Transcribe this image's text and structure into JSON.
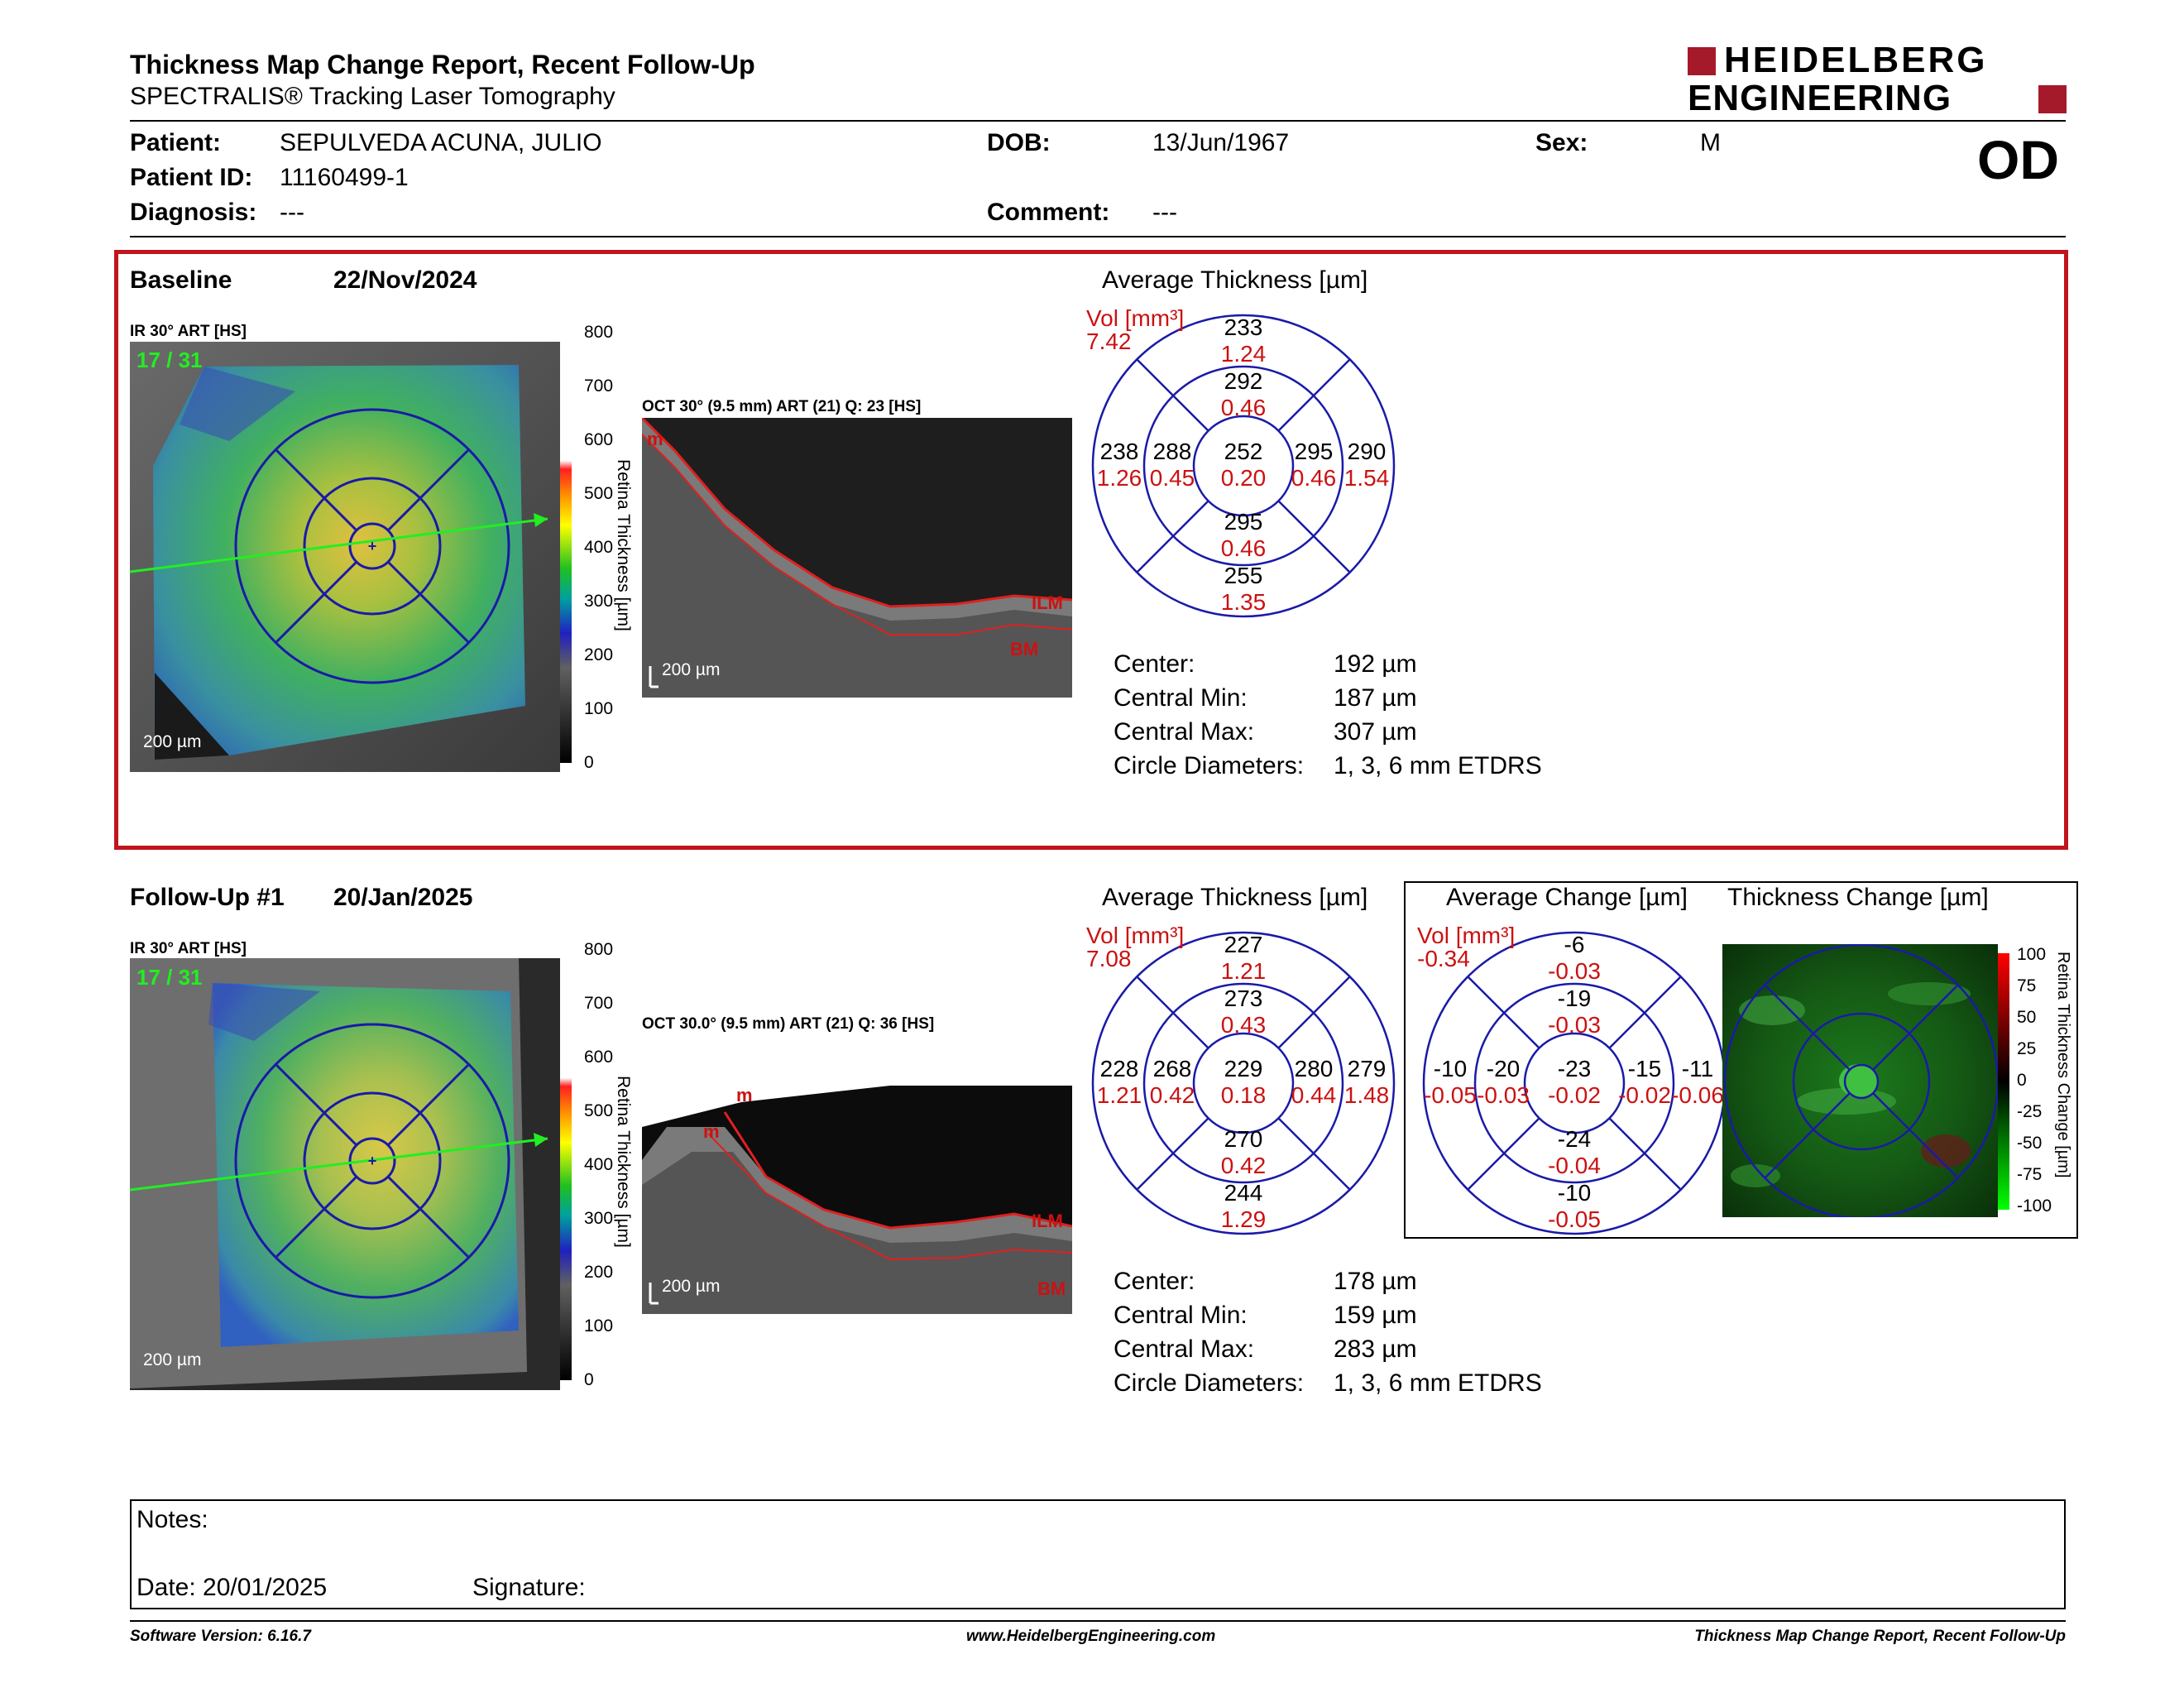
{
  "header": {
    "title": "Thickness Map Change Report, Recent Follow-Up",
    "subtitle": "SPECTRALIS® Tracking Laser Tomography",
    "logo_line1": "HEIDELBERG",
    "logo_line2": "ENGINEERING",
    "eye": "OD"
  },
  "patient": {
    "name_label": "Patient:",
    "name": "SEPULVEDA ACUNA, JULIO",
    "id_label": "Patient ID:",
    "id": "11160499-1",
    "diagnosis_label": "Diagnosis:",
    "diagnosis": "---",
    "dob_label": "DOB:",
    "dob": "13/Jun/1967",
    "comment_label": "Comment:",
    "comment": "---",
    "sex_label": "Sex:",
    "sex": "M"
  },
  "baseline": {
    "label": "Baseline",
    "date": "22/Nov/2024",
    "ir_title": "IR 30° ART [HS]",
    "frame": "17 / 31",
    "scale_bar": "200 µm",
    "oct_title": "OCT 30° (9.5 mm) ART (21) Q: 23 [HS]",
    "oct_scale": "200 µm",
    "oct_labels": {
      "ilm": "ILM",
      "bm": "BM",
      "m": "m"
    },
    "colorbar_ticks": [
      "800",
      "700",
      "600",
      "500",
      "400",
      "300",
      "200",
      "100",
      "0"
    ],
    "colorbar_title": "Retina Thickness [µm]",
    "etdrs_title": "Average Thickness [µm]",
    "vol_label": "Vol [mm³]",
    "vol_value": "7.42",
    "etdrs": {
      "outer_top": [
        "233",
        "1.24"
      ],
      "inner_top": [
        "292",
        "0.46"
      ],
      "outer_left": [
        "238",
        "1.26"
      ],
      "inner_left": [
        "288",
        "0.45"
      ],
      "center": [
        "252",
        "0.20"
      ],
      "inner_right": [
        "295",
        "0.46"
      ],
      "outer_right": [
        "290",
        "1.54"
      ],
      "inner_bottom": [
        "295",
        "0.46"
      ],
      "outer_bottom": [
        "255",
        "1.35"
      ]
    },
    "stats": [
      {
        "label": "Center:",
        "value": "192 µm"
      },
      {
        "label": "Central Min:",
        "value": "187 µm"
      },
      {
        "label": "Central Max:",
        "value": "307 µm"
      },
      {
        "label": "Circle Diameters:",
        "value": "1, 3, 6 mm ETDRS"
      }
    ]
  },
  "followup": {
    "label": "Follow-Up #1",
    "date": "20/Jan/2025",
    "ir_title": "IR 30° ART [HS]",
    "frame": "17 / 31",
    "scale_bar": "200 µm",
    "oct_title": "OCT 30.0° (9.5 mm) ART (21) Q: 36 [HS]",
    "oct_scale": "200 µm",
    "oct_labels": {
      "ilm": "ILM",
      "bm": "BM",
      "m": "m"
    },
    "colorbar_ticks": [
      "800",
      "700",
      "600",
      "500",
      "400",
      "300",
      "200",
      "100",
      "0"
    ],
    "colorbar_title": "Retina Thickness [µm]",
    "etdrs_title": "Average Thickness [µm]",
    "vol_label": "Vol [mm³]",
    "vol_value": "7.08",
    "etdrs": {
      "outer_top": [
        "227",
        "1.21"
      ],
      "inner_top": [
        "273",
        "0.43"
      ],
      "outer_left": [
        "228",
        "1.21"
      ],
      "inner_left": [
        "268",
        "0.42"
      ],
      "center": [
        "229",
        "0.18"
      ],
      "inner_right": [
        "280",
        "0.44"
      ],
      "outer_right": [
        "279",
        "1.48"
      ],
      "inner_bottom": [
        "270",
        "0.42"
      ],
      "outer_bottom": [
        "244",
        "1.29"
      ]
    },
    "stats": [
      {
        "label": "Center:",
        "value": "178 µm"
      },
      {
        "label": "Central Min:",
        "value": "159 µm"
      },
      {
        "label": "Central Max:",
        "value": "283 µm"
      },
      {
        "label": "Circle Diameters:",
        "value": "1, 3, 6 mm ETDRS"
      }
    ]
  },
  "change": {
    "title": "Average Change [µm]",
    "vol_label": "Vol [mm³]",
    "vol_value": "-0.34",
    "etdrs": {
      "outer_top": [
        "-6",
        "-0.03"
      ],
      "inner_top": [
        "-19",
        "-0.03"
      ],
      "outer_left": [
        "-10",
        "-0.05"
      ],
      "inner_left": [
        "-20",
        "-0.03"
      ],
      "center": [
        "-23",
        "-0.02"
      ],
      "inner_right": [
        "-15",
        "-0.02"
      ],
      "outer_right": [
        "-11",
        "-0.06"
      ],
      "inner_bottom": [
        "-24",
        "-0.04"
      ],
      "outer_bottom": [
        "-10",
        "-0.05"
      ]
    },
    "map_title": "Thickness Change [µm]",
    "colorbar_ticks": [
      "100",
      "75",
      "50",
      "25",
      "0",
      "-25",
      "-50",
      "-75",
      "-100"
    ],
    "colorbar_title": "Retina Thickness Change [µm]"
  },
  "notes": {
    "notes_label": "Notes:",
    "date_label": "Date: 20/01/2025",
    "signature_label": "Signature:"
  },
  "footer": {
    "left": "Software Version: 6.16.7",
    "center": "www.HeidelbergEngineering.com",
    "right": "Thickness Map Change Report, Recent Follow-Up"
  },
  "colors": {
    "accent_red": "#c0151d",
    "etdrs_blue": "#1a1aa8",
    "value_red": "#cc1111"
  }
}
